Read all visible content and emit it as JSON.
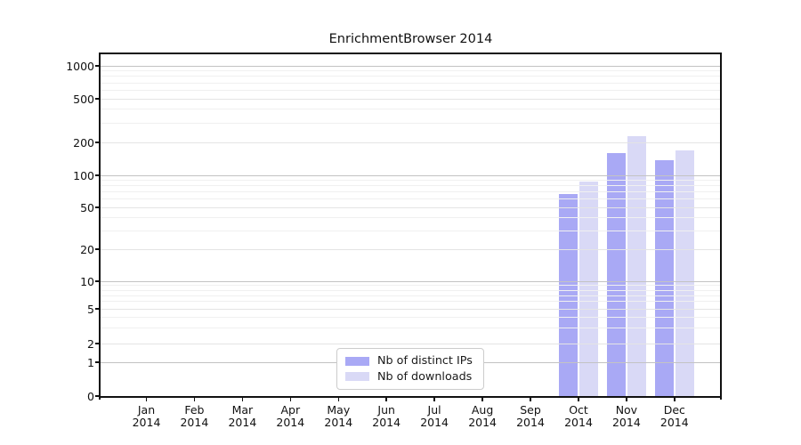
{
  "chart_data": {
    "type": "bar",
    "title": "EnrichmentBrowser 2014",
    "x_categories": [
      {
        "month": "Jan",
        "year": "2014"
      },
      {
        "month": "Feb",
        "year": "2014"
      },
      {
        "month": "Mar",
        "year": "2014"
      },
      {
        "month": "Apr",
        "year": "2014"
      },
      {
        "month": "May",
        "year": "2014"
      },
      {
        "month": "Jun",
        "year": "2014"
      },
      {
        "month": "Jul",
        "year": "2014"
      },
      {
        "month": "Aug",
        "year": "2014"
      },
      {
        "month": "Sep",
        "year": "2014"
      },
      {
        "month": "Oct",
        "year": "2014"
      },
      {
        "month": "Nov",
        "year": "2014"
      },
      {
        "month": "Dec",
        "year": "2014"
      }
    ],
    "series": [
      {
        "name": "Nb of distinct IPs",
        "color": "#a9a9f5",
        "values": [
          0,
          0,
          0,
          0,
          0,
          0,
          0,
          0,
          0,
          67,
          160,
          137
        ]
      },
      {
        "name": "Nb of downloads",
        "color": "#d9d9f6",
        "values": [
          0,
          0,
          0,
          0,
          0,
          0,
          0,
          0,
          0,
          87,
          230,
          168
        ]
      }
    ],
    "y_ticks": [
      0,
      1,
      2,
      5,
      10,
      20,
      50,
      100,
      200,
      500,
      1000
    ],
    "y_major_grid_values": [
      1,
      10,
      100,
      1000
    ],
    "y_mid_grid_values": [
      2,
      5,
      20,
      50,
      200,
      500
    ],
    "y_minor_grid_values": [
      3,
      4,
      6,
      7,
      8,
      9,
      30,
      40,
      60,
      70,
      80,
      90,
      300,
      400,
      600,
      700,
      800,
      900
    ],
    "ylim": [
      0,
      1000
    ],
    "yscale": "log",
    "grid": true,
    "legend_position": "lower center",
    "scale_anchors_value_to_yfrac": [
      [
        0,
        1.0
      ],
      [
        1,
        0.901
      ],
      [
        2,
        0.8464
      ],
      [
        5,
        0.7448
      ],
      [
        10,
        0.6641
      ],
      [
        20,
        0.5703
      ],
      [
        50,
        0.4479
      ],
      [
        100,
        0.3542
      ],
      [
        200,
        0.2578
      ],
      [
        500,
        0.1302
      ],
      [
        1000,
        0.0339
      ]
    ],
    "colors": {
      "major_grid": "#c3c3c3",
      "minor_grid": "#f0f0f0",
      "spine": "#111111",
      "background": "#ffffff"
    }
  }
}
